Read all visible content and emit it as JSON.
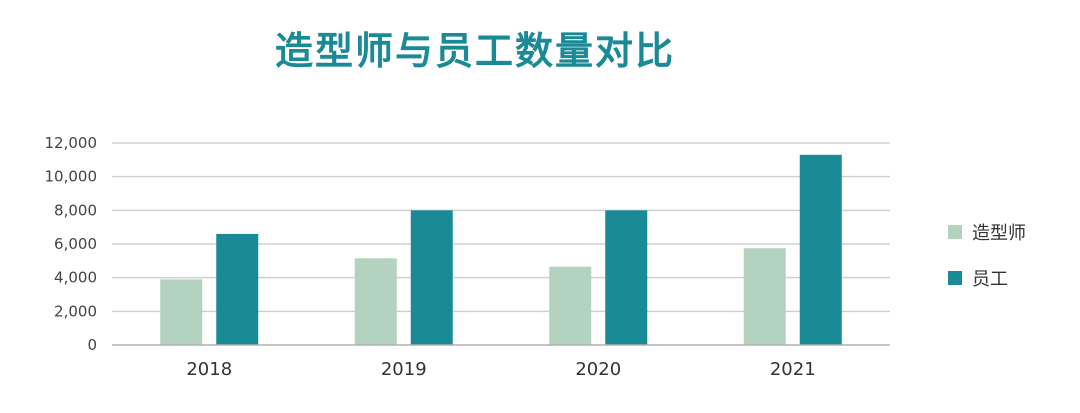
{
  "chart_data": {
    "type": "bar",
    "title": "造型师与员工数量对比",
    "categories": [
      "2018",
      "2019",
      "2020",
      "2021"
    ],
    "series": [
      {
        "name": "造型师",
        "values": [
          3900,
          5150,
          4650,
          5750
        ],
        "color": "#b3d2c0"
      },
      {
        "name": "员工",
        "values": [
          6600,
          8000,
          8000,
          11300
        ],
        "color": "#1a8a96"
      }
    ],
    "xlabel": "",
    "ylabel": "",
    "ylim": [
      0,
      12000
    ],
    "yticks": [
      "0",
      "2,000",
      "4,000",
      "6,000",
      "8,000",
      "10,000",
      "12,000"
    ],
    "grid": true,
    "legend_position": "right"
  }
}
